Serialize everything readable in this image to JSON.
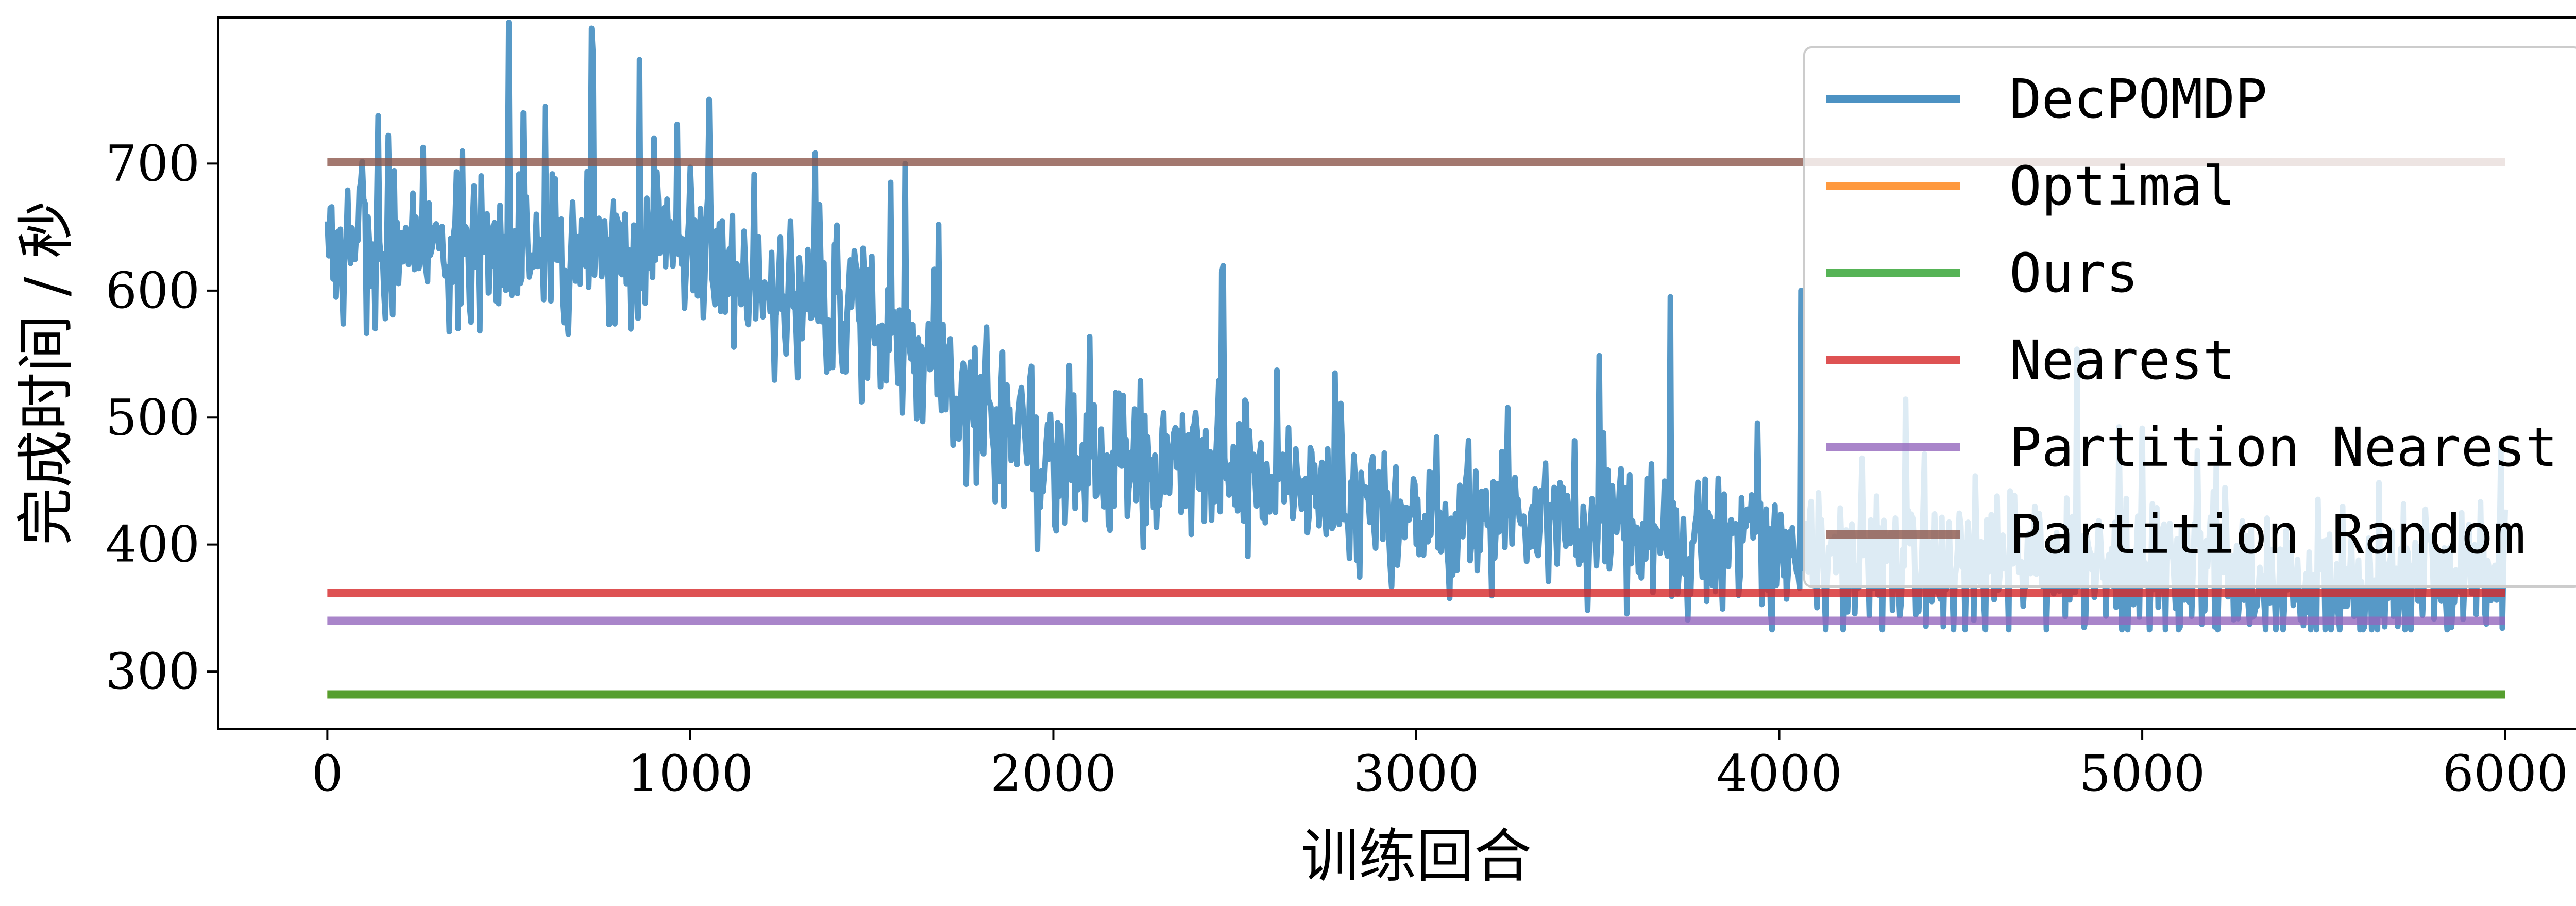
{
  "chart_data": {
    "type": "line",
    "title": "",
    "xlabel": "训练回合",
    "ylabel": "完成时间 / 秒",
    "xlim": [
      -300,
      6300
    ],
    "ylim": [
      255,
      815
    ],
    "xticks": [
      0,
      1000,
      2000,
      3000,
      4000,
      5000,
      6000
    ],
    "yticks": [
      300,
      400,
      500,
      600,
      700
    ],
    "grid": false,
    "legend_position": "top-right",
    "series": [
      {
        "name": "DecPOMDP",
        "color": "#1f77b4",
        "alpha": 0.75,
        "x_range": [
          0,
          6000
        ],
        "noisy": true,
        "trend": [
          [
            0,
            640
          ],
          [
            1000,
            630
          ],
          [
            1500,
            575
          ],
          [
            2000,
            470
          ],
          [
            2500,
            455
          ],
          [
            3000,
            420
          ],
          [
            3500,
            410
          ],
          [
            4000,
            395
          ],
          [
            4500,
            385
          ],
          [
            5000,
            375
          ],
          [
            6000,
            370
          ]
        ],
        "peaks": [
          [
            730,
            785
          ],
          [
            600,
            745
          ],
          [
            1590,
            700
          ],
          [
            3700,
            595
          ],
          [
            4060,
            600
          ]
        ],
        "min_value": 333
      },
      {
        "name": "Optimal",
        "color": "#ff7f0e",
        "x": [
          0,
          6000
        ],
        "y": [
          282,
          282
        ]
      },
      {
        "name": "Ours",
        "color": "#2ca02c",
        "x": [
          0,
          6000
        ],
        "y": [
          282,
          282
        ]
      },
      {
        "name": "Nearest",
        "color": "#d62728",
        "x": [
          0,
          6000
        ],
        "y": [
          362,
          362
        ]
      },
      {
        "name": "Partition Nearest",
        "color": "#9467bd",
        "x": [
          0,
          6000
        ],
        "y": [
          340,
          340
        ]
      },
      {
        "name": "Partition Random",
        "color": "#8c564b",
        "x": [
          0,
          6000
        ],
        "y": [
          701,
          701
        ]
      }
    ]
  }
}
